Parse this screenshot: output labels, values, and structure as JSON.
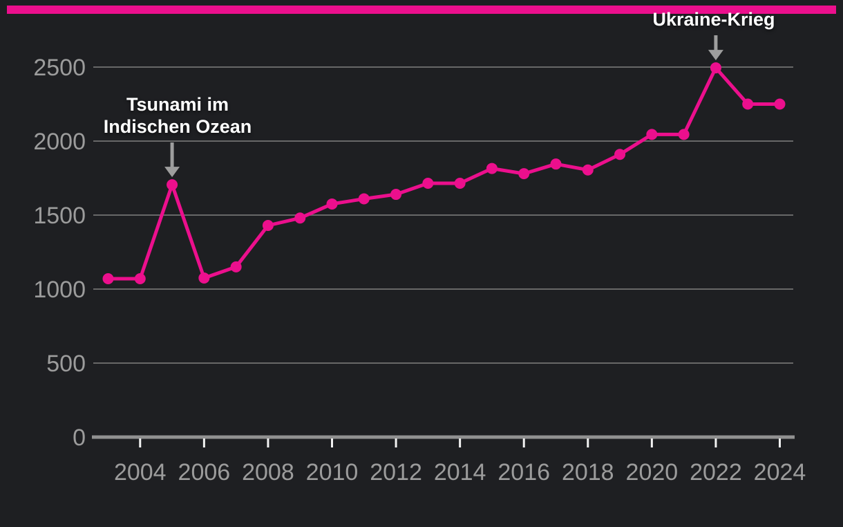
{
  "colors": {
    "background": "#1e1f22",
    "accent": "#ec0f8d",
    "grid": "#686868",
    "axis": "#919191",
    "tick": "#f2f2f2",
    "tick_label": "#9c9c9c",
    "annotation_text": "#ffffff",
    "arrow": "#9e9e9e"
  },
  "brand_bar": {
    "color": "#ec0f8d"
  },
  "chart_data": {
    "type": "line",
    "title": "",
    "xlabel": "",
    "ylabel": "",
    "grid": true,
    "legend": "none",
    "ylim": [
      0,
      2500
    ],
    "yticks": [
      0,
      500,
      1000,
      1500,
      2000,
      2500
    ],
    "xticks": [
      2004,
      2006,
      2008,
      2010,
      2012,
      2014,
      2016,
      2018,
      2020,
      2022,
      2024
    ],
    "x": [
      2003,
      2004,
      2005,
      2006,
      2007,
      2008,
      2009,
      2010,
      2011,
      2012,
      2013,
      2014,
      2015,
      2016,
      2017,
      2018,
      2019,
      2020,
      2021,
      2022,
      2023,
      2024
    ],
    "values": [
      1070,
      1070,
      1705,
      1075,
      1150,
      1430,
      1480,
      1575,
      1610,
      1640,
      1715,
      1715,
      1815,
      1780,
      1845,
      1805,
      1910,
      2045,
      2045,
      2495,
      2250,
      2250
    ],
    "series_color": "#ec0f8d",
    "annotations": [
      {
        "lines": [
          "Tsunami im",
          "Indischen Ozean"
        ],
        "target_year": 2005,
        "target_value": 1705,
        "text_center_x": 257,
        "text_top": 135,
        "arrow_top": 206
      },
      {
        "lines": [
          "Ukraine-Krieg"
        ],
        "target_year": 2022,
        "target_value": 2495,
        "text_center_x": 1033,
        "text_top": 12,
        "arrow_top": 51
      }
    ]
  }
}
